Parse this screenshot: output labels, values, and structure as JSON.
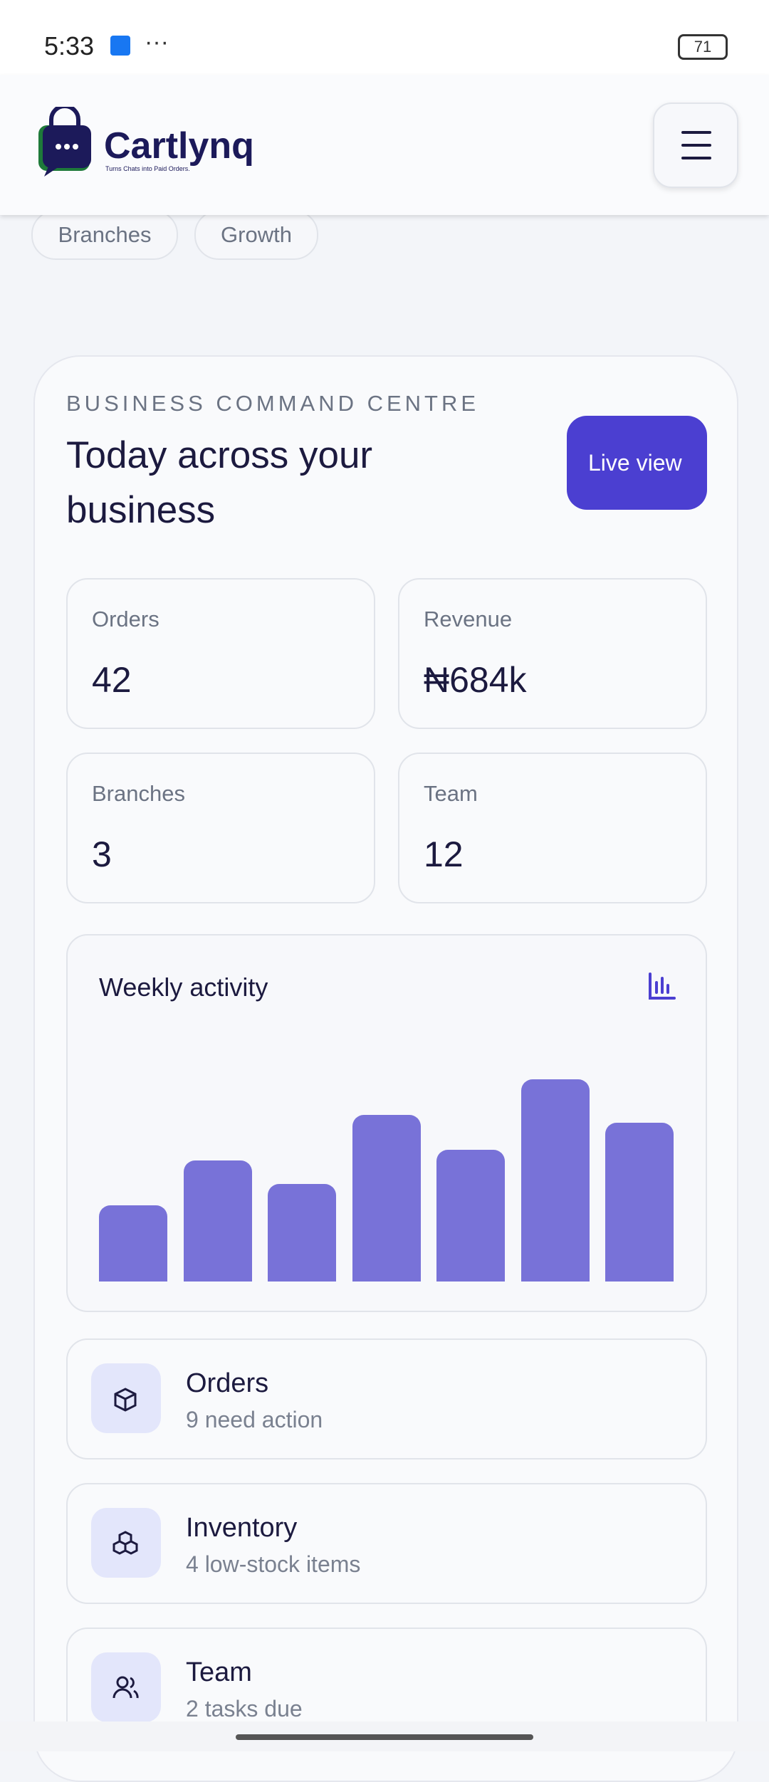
{
  "status": {
    "time": "5:33",
    "battery": "71"
  },
  "header": {
    "brand": "Cartlynq",
    "tagline": "Turns Chats into Paid Orders."
  },
  "chips": [
    "Branches",
    "Growth"
  ],
  "card": {
    "eyebrow": "BUSINESS COMMAND CENTRE",
    "title": "Today across your business",
    "button": "Live view"
  },
  "stats": [
    {
      "label": "Orders",
      "value": "42"
    },
    {
      "label": "Revenue",
      "value": "₦684k"
    },
    {
      "label": "Branches",
      "value": "3"
    },
    {
      "label": "Team",
      "value": "12"
    }
  ],
  "chart_data": {
    "type": "bar",
    "title": "Weekly activity",
    "values": [
      68,
      108,
      87,
      149,
      118,
      181,
      142
    ],
    "color": "#7872d8"
  },
  "items": [
    {
      "title": "Orders",
      "subtitle": "9 need action"
    },
    {
      "title": "Inventory",
      "subtitle": "4 low-stock items"
    },
    {
      "title": "Team",
      "subtitle": "2 tasks due"
    }
  ]
}
